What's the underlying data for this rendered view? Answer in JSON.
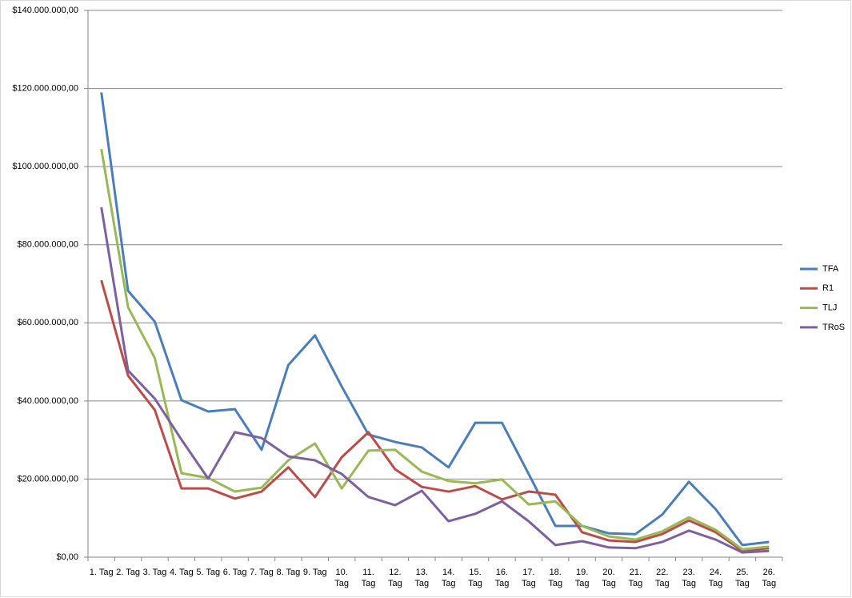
{
  "chart_data": {
    "type": "line",
    "categories": [
      "1. Tag",
      "2. Tag",
      "3. Tag",
      "4. Tag",
      "5. Tag",
      "6. Tag",
      "7. Tag",
      "8. Tag",
      "9. Tag",
      "10. Tag",
      "11. Tag",
      "12. Tag",
      "13. Tag",
      "14. Tag",
      "15. Tag",
      "16. Tag",
      "17. Tag",
      "18. Tag",
      "19. Tag",
      "20. Tag",
      "21. Tag",
      "22. Tag",
      "23. Tag",
      "24. Tag",
      "25. Tag",
      "26. Tag"
    ],
    "series": [
      {
        "name": "TFA",
        "color": "#4a7ebb",
        "values": [
          119000000,
          68200000,
          60300000,
          40200000,
          37300000,
          37900000,
          27500000,
          49200000,
          56800000,
          43700000,
          31400000,
          29500000,
          28100000,
          23000000,
          34400000,
          34400000,
          21300000,
          8000000,
          8000000,
          6100000,
          5900000,
          10900000,
          19300000,
          12300000,
          3100000,
          3900000
        ]
      },
      {
        "name": "R1",
        "color": "#be4b48",
        "values": [
          70900000,
          46500000,
          37700000,
          17600000,
          17600000,
          15000000,
          16800000,
          23000000,
          15400000,
          25600000,
          32000000,
          22500000,
          18000000,
          16800000,
          18200000,
          14800000,
          16800000,
          16000000,
          6400000,
          4300000,
          3900000,
          5900000,
          9400000,
          6400000,
          1600000,
          2300000
        ]
      },
      {
        "name": "TLJ",
        "color": "#98b954",
        "values": [
          104500000,
          64000000,
          51000000,
          21500000,
          20300000,
          16800000,
          17800000,
          24800000,
          29100000,
          17600000,
          27300000,
          27500000,
          21900000,
          19500000,
          18900000,
          19900000,
          13500000,
          14300000,
          8000000,
          5300000,
          4500000,
          6600000,
          10200000,
          7000000,
          2000000,
          2700000
        ]
      },
      {
        "name": "TRoS",
        "color": "#7d60a0",
        "values": [
          89600000,
          47800000,
          40600000,
          30100000,
          20100000,
          32000000,
          30500000,
          25800000,
          24800000,
          21300000,
          15400000,
          13300000,
          17000000,
          9200000,
          11100000,
          14300000,
          9200000,
          3100000,
          4100000,
          2500000,
          2300000,
          3900000,
          6800000,
          4500000,
          1200000,
          1600000
        ]
      }
    ],
    "ylim": [
      0,
      140000000
    ],
    "yticks": [
      {
        "value": 0,
        "label": "$0,00"
      },
      {
        "value": 20000000,
        "label": "$20.000.000,00"
      },
      {
        "value": 40000000,
        "label": "$40.000.000,00"
      },
      {
        "value": 60000000,
        "label": "$60.000.000,00"
      },
      {
        "value": 80000000,
        "label": "$80.000.000,00"
      },
      {
        "value": 100000000,
        "label": "$100.000.000,00"
      },
      {
        "value": 120000000,
        "label": "$120.000.000,00"
      },
      {
        "value": 140000000,
        "label": "$140.000.000,00"
      }
    ],
    "grid": true,
    "legend": "right"
  }
}
